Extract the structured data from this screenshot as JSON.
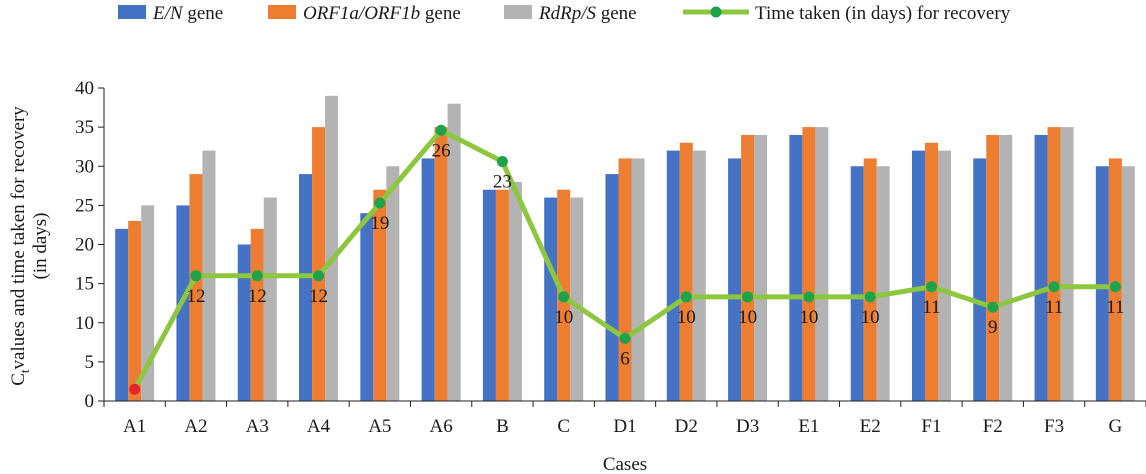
{
  "chart_data": {
    "type": "bar",
    "categories": [
      "A1",
      "A2",
      "A3",
      "A4",
      "A5",
      "A6",
      "B",
      "C",
      "D1",
      "D2",
      "D3",
      "E1",
      "E2",
      "F1",
      "F2",
      "F3",
      "G"
    ],
    "series": [
      {
        "name": "E/N gene",
        "name_italic": "E/N",
        "name_rest": " gene",
        "kind": "bar",
        "color": "#4472c4",
        "values": [
          22,
          25,
          20,
          29,
          24,
          31,
          27,
          26,
          29,
          32,
          31,
          34,
          30,
          32,
          31,
          34,
          30
        ]
      },
      {
        "name": "ORF1a/ORF1b gene",
        "name_italic": "ORF1a/ORF1b",
        "name_rest": " gene",
        "kind": "bar",
        "color": "#ed7d31",
        "values": [
          23,
          29,
          22,
          35,
          27,
          35,
          27,
          27,
          31,
          33,
          34,
          35,
          31,
          33,
          34,
          35,
          31
        ]
      },
      {
        "name": "RdRp/S gene",
        "name_italic": "RdRp/S",
        "name_rest": " gene",
        "kind": "bar",
        "color": "#b3b3b3",
        "values": [
          25,
          32,
          26,
          39,
          30,
          38,
          28,
          26,
          31,
          32,
          34,
          35,
          30,
          32,
          34,
          35,
          30
        ]
      },
      {
        "name": "Time taken (in days) for recovery",
        "kind": "line",
        "color": "#8dc63f",
        "marker_color": "#1fa34a",
        "values": [
          1.5,
          16,
          16,
          16,
          25.3,
          34.6,
          30.6,
          13.3,
          8,
          13.3,
          13.3,
          13.3,
          13.3,
          14.6,
          12,
          14.6,
          14.6
        ],
        "labels": [
          "",
          "12",
          "12",
          "12",
          "19",
          "26",
          "23",
          "10",
          "6",
          "10",
          "10",
          "10",
          "10",
          "11",
          "9",
          "11",
          "11"
        ]
      }
    ],
    "highlight_point": {
      "category": "A1",
      "color": "#e8232a"
    },
    "xlabel": "Cases",
    "ylabel_sub": "t",
    "ylabel_line1_head": "C",
    "ylabel_line1_tail": "values and time taken for recovery",
    "ylabel_line2": "(in days)",
    "ylim": [
      0,
      40
    ],
    "yticks": [
      0,
      5,
      10,
      15,
      20,
      25,
      30,
      35,
      40
    ],
    "grid": false,
    "legend_position": "top"
  }
}
